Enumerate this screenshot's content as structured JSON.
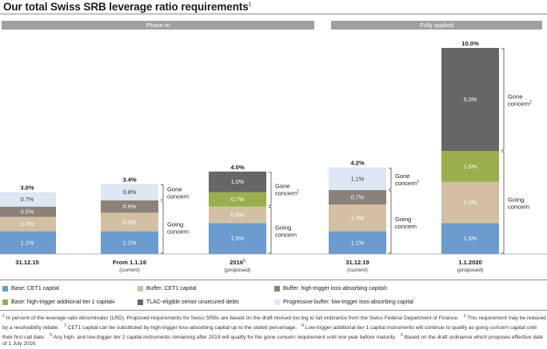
{
  "title": "Our total Swiss SRB leverage ratio requirements",
  "title_note": "1",
  "bands": {
    "phase_in": "Phase-in",
    "fully_applied": "Fully applied"
  },
  "colors": {
    "base_cet1": "#6b9bcf",
    "buffer_cet1": "#d3c0a3",
    "buffer_high_trigger": "#8b8178",
    "base_at1": "#9ab04e",
    "tlac": "#666666",
    "progressive": "#dde7f2"
  },
  "chart_data": {
    "type": "bar",
    "stacked": true,
    "unit": "%",
    "categories": [
      {
        "label": "31.12.15",
        "sub": ""
      },
      {
        "label": "From 1.1.16",
        "sub": "(current)"
      },
      {
        "label": "2016",
        "label_note": "6",
        "sub": "(proposed)"
      },
      {
        "label": "31.12.19",
        "sub": "(current)"
      },
      {
        "label": "1.1.2020",
        "sub": "(proposed)"
      }
    ],
    "totals": [
      "3.0%",
      "3.4%",
      "4.0%",
      "4.2%",
      "10.0%"
    ],
    "series": [
      {
        "name": "Base: CET1 capital",
        "color_key": "base_cet1",
        "values": [
          1.1,
          1.1,
          1.5,
          1.1,
          1.5
        ],
        "labels": [
          "1.1%",
          "1.1%",
          "1.5%",
          "1.1%",
          "1.5%"
        ]
      },
      {
        "name": "Buffer: CET1 capital",
        "color_key": "buffer_cet1",
        "values": [
          0.7,
          0.9,
          0.8,
          1.3,
          2.0
        ],
        "labels": [
          "0.7%",
          "0.9%",
          "0.8%",
          "1.3%",
          "2.0%"
        ]
      },
      {
        "name": "Buffer: high-trigger loss-absorbing capital",
        "note": "3",
        "color_key": "buffer_high_trigger",
        "values": [
          0.5,
          0.6,
          0,
          0.7,
          0
        ],
        "labels": [
          "0.5%",
          "0.6%",
          "",
          "0.7%",
          ""
        ]
      },
      {
        "name": "Base: high-trigger additional tier 1 capital",
        "note": "4",
        "color_key": "base_at1",
        "values": [
          0,
          0,
          0.7,
          0,
          1.5
        ],
        "labels": [
          "",
          "",
          "0.7%",
          "",
          "1.5%"
        ]
      },
      {
        "name": "TLAC-eligible senior unsecured debt",
        "note": "5",
        "color_key": "tlac",
        "values": [
          0,
          0,
          1.0,
          0,
          5.0
        ],
        "labels": [
          "",
          "",
          "1.0%",
          "",
          "5.0%"
        ]
      },
      {
        "name": "Progressive buffer: low-trigger loss-absorbing capital",
        "color_key": "progressive",
        "values": [
          0.7,
          0.8,
          0,
          1.1,
          0
        ],
        "labels": [
          "0.7%",
          "0.8%",
          "",
          "1.1%",
          ""
        ]
      }
    ],
    "annotations": [
      {
        "bar": 1,
        "from": 2.6,
        "to": 3.4,
        "lines": [
          "Gone",
          "concern"
        ]
      },
      {
        "bar": 1,
        "from": 0,
        "to": 2.6,
        "lines": [
          "Going",
          "concern"
        ]
      },
      {
        "bar": 2,
        "from": 2.3,
        "to": 4.0,
        "lines": [
          "Gone",
          "concern"
        ],
        "note": "2"
      },
      {
        "bar": 2,
        "from": 0,
        "to": 2.3,
        "lines": [
          "Going",
          "concern"
        ]
      },
      {
        "bar": 3,
        "from": 3.1,
        "to": 4.2,
        "lines": [
          "Gone",
          "concern"
        ],
        "note": "2"
      },
      {
        "bar": 3,
        "from": 0,
        "to": 3.1,
        "lines": [
          "Going",
          "concern"
        ]
      },
      {
        "bar": 4,
        "from": 5.0,
        "to": 10.0,
        "lines": [
          "Gone",
          "concern"
        ],
        "note": "2"
      },
      {
        "bar": 4,
        "from": 0,
        "to": 5.0,
        "lines": [
          "Going",
          "concern"
        ]
      }
    ],
    "legend_placement": "bottom",
    "grid": false
  },
  "footnotes": [
    {
      "n": "1",
      "text": "In percent of the leverage ratio denominator (LRD). Proposed requirements for Swiss SRBs are based on the draft revised too big to fail ordinance from the Swiss Federal Department of Finance."
    },
    {
      "n": "2",
      "text": "This requirement may be reduced by a resolvability rebate."
    },
    {
      "n": "3",
      "text": "CET1 capital can be substituted by high-trigger loss-absorbing capital up to the stated percentage."
    },
    {
      "n": "4",
      "text": "Low-trigger additional tier 1 capital instruments will continue to qualify as going concern capital until their first call date."
    },
    {
      "n": "5",
      "text": "Any high- and low-trigger tier 2 capital instruments remaining after 2019 will qualify for the gone concern requirement until one year before maturity."
    },
    {
      "n": "6",
      "text": "Based on the draft ordinance which proposes effective date of 1 July 2016."
    }
  ]
}
